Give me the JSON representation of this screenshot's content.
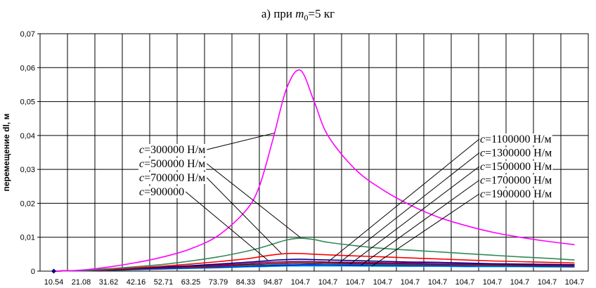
{
  "chart_data": {
    "type": "line",
    "title": {
      "prefix": "а) при ",
      "var": "m",
      "sub": "0",
      "suffix": "=5 кг"
    },
    "xlabel": "",
    "ylabel": "перемещение dl, м",
    "ylim": [
      0,
      0.07
    ],
    "yticks": [
      "0",
      "0,01",
      "0,02",
      "0,03",
      "0,04",
      "0,05",
      "0,06",
      "0,07"
    ],
    "xticks": [
      "10.54",
      "21.08",
      "31.62",
      "42.16",
      "52.71",
      "63.25",
      "73.79",
      "84.33",
      "94.87",
      "104.7",
      "104.7",
      "104.7",
      "104.7",
      "104.7",
      "104.7",
      "104.7",
      "104.7",
      "104.7",
      "104.7",
      "104.7"
    ],
    "grid": true,
    "legend": "annotations",
    "x_index": [
      1,
      1.5,
      2,
      3,
      4,
      5,
      6,
      7,
      8,
      8.5,
      9,
      9.5,
      10,
      10.5,
      11,
      12,
      13,
      14,
      15,
      16,
      17,
      18,
      19,
      20
    ],
    "series": [
      {
        "name": "c=300000 Н/м",
        "color": "#ff00ff",
        "values": [
          0,
          0.0001,
          0.0003,
          0.0012,
          0.0025,
          0.0042,
          0.0066,
          0.0105,
          0.0178,
          0.025,
          0.039,
          0.054,
          0.0592,
          0.05,
          0.04,
          0.03,
          0.024,
          0.0195,
          0.016,
          0.0135,
          0.0115,
          0.01,
          0.0088,
          0.0078
        ]
      },
      {
        "name": "c=500000 Н/м",
        "color": "#2e8b57",
        "values": [
          0,
          0.0001,
          0.0002,
          0.0007,
          0.0013,
          0.002,
          0.003,
          0.0042,
          0.0058,
          0.0068,
          0.008,
          0.0092,
          0.0097,
          0.0093,
          0.0085,
          0.0075,
          0.0067,
          0.0062,
          0.0057,
          0.0052,
          0.0047,
          0.0042,
          0.0038,
          0.0033
        ]
      },
      {
        "name": "c=700000 Н/м",
        "color": "#ff0000",
        "values": [
          0,
          0.0001,
          0.0002,
          0.0005,
          0.001,
          0.0015,
          0.0021,
          0.0028,
          0.0036,
          0.0042,
          0.0048,
          0.0052,
          0.0052,
          0.005,
          0.0048,
          0.0045,
          0.0042,
          0.0039,
          0.0036,
          0.0033,
          0.003,
          0.0028,
          0.0026,
          0.0024
        ]
      },
      {
        "name": "c=900000",
        "color": "#000080",
        "values": [
          0,
          0.0001,
          0.0002,
          0.0004,
          0.0008,
          0.0012,
          0.0016,
          0.0021,
          0.0026,
          0.0029,
          0.0032,
          0.0034,
          0.0035,
          0.0034,
          0.0033,
          0.0031,
          0.0029,
          0.0027,
          0.0026,
          0.0024,
          0.0022,
          0.0021,
          0.002,
          0.0019
        ]
      },
      {
        "name": "c=1100000 Н/м",
        "color": "#800080",
        "values": [
          0,
          0.0001,
          0.0002,
          0.0004,
          0.0007,
          0.001,
          0.0014,
          0.0018,
          0.0022,
          0.0025,
          0.0027,
          0.0028,
          0.0029,
          0.0028,
          0.0027,
          0.0026,
          0.0025,
          0.0024,
          0.0022,
          0.0021,
          0.002,
          0.0019,
          0.0018,
          0.0017
        ]
      },
      {
        "name": "c=1300000 Н/м",
        "color": "#8b0000",
        "values": [
          0,
          0.0001,
          0.0002,
          0.0003,
          0.0006,
          0.0009,
          0.0012,
          0.0015,
          0.0019,
          0.0021,
          0.0023,
          0.0024,
          0.0025,
          0.0024,
          0.0024,
          0.0023,
          0.0022,
          0.0021,
          0.002,
          0.0019,
          0.0018,
          0.0017,
          0.0016,
          0.0015
        ]
      },
      {
        "name": "c=1500000 Н/м",
        "color": "#008080",
        "values": [
          0,
          0.0001,
          0.0001,
          0.0003,
          0.0005,
          0.0008,
          0.001,
          0.0013,
          0.0016,
          0.0018,
          0.0019,
          0.002,
          0.0021,
          0.0021,
          0.002,
          0.002,
          0.0019,
          0.0018,
          0.0018,
          0.0017,
          0.0016,
          0.0015,
          0.0015,
          0.0014
        ]
      },
      {
        "name": "c=1700000 Н/м",
        "color": "#0000ff",
        "values": [
          0,
          0.0001,
          0.0001,
          0.0003,
          0.0005,
          0.0007,
          0.0009,
          0.0011,
          0.0014,
          0.0015,
          0.0016,
          0.0017,
          0.0018,
          0.0018,
          0.0018,
          0.0017,
          0.0017,
          0.0016,
          0.0016,
          0.0015,
          0.0015,
          0.0014,
          0.0014,
          0.0013
        ]
      },
      {
        "name": "c=1900000 Н/м",
        "color": "#00bfff",
        "values": [
          0,
          0.0001,
          0.0001,
          0.0002,
          0.0004,
          0.0006,
          0.0008,
          0.001,
          0.0012,
          0.0013,
          0.0014,
          0.0015,
          0.0015,
          0.0015,
          0.0015,
          0.0015,
          0.0014,
          0.0014,
          0.0014,
          0.0013,
          0.0013,
          0.0013,
          0.0012,
          0.0012
        ]
      }
    ],
    "start_marker": {
      "x_index": 1,
      "value": 0,
      "color": "#000080"
    },
    "annotations": {
      "left": [
        {
          "c": "c",
          "rest": "=300000 Н/м",
          "series": 0
        },
        {
          "c": "c",
          "rest": "=500000 Н/м",
          "series": 1
        },
        {
          "c": "c",
          "rest": "=700000 Н/м",
          "series": 2
        },
        {
          "c": "c",
          "rest": "=900000",
          "series": 3
        }
      ],
      "right": [
        {
          "c": "c",
          "rest": "=1100000 Н/м",
          "series": 4
        },
        {
          "c": "c",
          "rest": "=1300000 Н/м",
          "series": 5
        },
        {
          "c": "c",
          "rest": "=1500000 Н/м",
          "series": 6
        },
        {
          "c": "c",
          "rest": "=1700000 Н/м",
          "series": 7
        },
        {
          "c": "c",
          "rest": "=1900000 Н/м",
          "series": 8
        }
      ]
    }
  }
}
